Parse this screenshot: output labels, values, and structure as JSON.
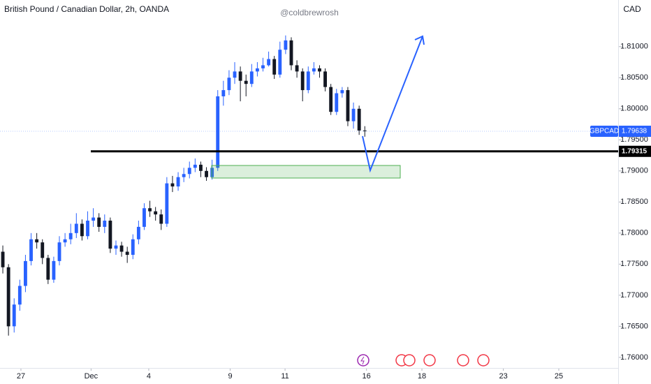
{
  "chart_data": {
    "type": "candlestick",
    "title": "British Pound / Canadian Dollar, 2h, OANDA",
    "watermark": "@coldbrewrosh",
    "currency": "CAD",
    "symbol": "GBPCAD",
    "last_price": 1.79638,
    "level": 1.79315,
    "up_color": "#2962ff",
    "down_color": "#131722",
    "x": [
      0,
      1,
      2,
      3,
      4,
      5,
      6,
      7,
      8,
      9,
      10,
      11,
      12,
      13,
      14,
      15,
      16,
      17,
      18,
      19,
      20,
      21,
      22,
      23,
      24,
      25,
      26,
      27,
      28,
      29,
      30,
      31,
      32,
      33,
      34,
      35,
      36,
      37,
      38,
      39,
      40,
      41,
      42,
      43,
      44,
      45,
      46,
      47,
      48,
      49,
      50,
      51,
      52,
      53,
      54,
      55,
      56,
      57,
      58,
      59,
      60,
      61,
      62,
      63,
      64
    ],
    "open": [
      1.777,
      1.7745,
      1.765,
      1.7685,
      1.7715,
      1.7755,
      1.779,
      1.7785,
      1.776,
      1.7725,
      1.7755,
      1.7785,
      1.779,
      1.78,
      1.7815,
      1.7795,
      1.782,
      1.7825,
      1.781,
      1.782,
      1.7775,
      1.778,
      1.777,
      1.7765,
      1.779,
      1.781,
      1.784,
      1.7835,
      1.783,
      1.7815,
      1.788,
      1.7875,
      1.789,
      1.7895,
      1.7905,
      1.791,
      1.79,
      1.789,
      1.7905,
      1.802,
      1.803,
      1.805,
      1.806,
      1.8045,
      1.804,
      1.806,
      1.8065,
      1.807,
      1.808,
      1.8055,
      1.8095,
      1.811,
      1.807,
      1.806,
      1.803,
      1.806,
      1.8065,
      1.806,
      1.8035,
      1.7995,
      1.8025,
      1.803,
      1.798,
      1.8,
      1.7965
    ],
    "high": [
      1.778,
      1.775,
      1.7695,
      1.7725,
      1.7765,
      1.78,
      1.78,
      1.779,
      1.7765,
      1.7762,
      1.7795,
      1.78,
      1.7815,
      1.7832,
      1.7822,
      1.7835,
      1.784,
      1.7832,
      1.783,
      1.7825,
      1.7788,
      1.7786,
      1.7778,
      1.7798,
      1.782,
      1.7848,
      1.7852,
      1.7842,
      1.7838,
      1.789,
      1.7892,
      1.7898,
      1.7905,
      1.7915,
      1.792,
      1.7915,
      1.7906,
      1.7918,
      1.803,
      1.8045,
      1.8062,
      1.8075,
      1.8068,
      1.8055,
      1.8072,
      1.8075,
      1.8082,
      1.8092,
      1.8085,
      1.8108,
      1.8118,
      1.8115,
      1.8078,
      1.8065,
      1.8068,
      1.8075,
      1.807,
      1.8065,
      1.804,
      1.8032,
      1.8035,
      1.8035,
      1.801,
      1.8005,
      1.7972
    ],
    "low": [
      1.7735,
      1.7635,
      1.764,
      1.7675,
      1.7705,
      1.7748,
      1.7775,
      1.775,
      1.7718,
      1.772,
      1.7748,
      1.7778,
      1.7782,
      1.7792,
      1.7788,
      1.779,
      1.781,
      1.7802,
      1.78,
      1.7768,
      1.7765,
      1.7762,
      1.7752,
      1.7758,
      1.7782,
      1.7805,
      1.7826,
      1.782,
      1.7805,
      1.781,
      1.7866,
      1.7868,
      1.7882,
      1.7888,
      1.7898,
      1.789,
      1.7884,
      1.7886,
      1.79,
      1.8005,
      1.8022,
      1.804,
      1.8012,
      1.802,
      1.8035,
      1.8052,
      1.806,
      1.8068,
      1.8048,
      1.805,
      1.8088,
      1.8062,
      1.805,
      1.8012,
      1.8025,
      1.8055,
      1.805,
      1.8028,
      1.799,
      1.799,
      1.8018,
      1.7972,
      1.7968,
      1.7958,
      1.7955
    ],
    "close": [
      1.7745,
      1.765,
      1.7685,
      1.7715,
      1.7755,
      1.779,
      1.7785,
      1.776,
      1.7725,
      1.7755,
      1.7785,
      1.779,
      1.78,
      1.7815,
      1.7795,
      1.782,
      1.7825,
      1.781,
      1.782,
      1.7775,
      1.778,
      1.777,
      1.7765,
      1.779,
      1.781,
      1.784,
      1.7835,
      1.783,
      1.7815,
      1.788,
      1.7875,
      1.789,
      1.7895,
      1.7905,
      1.791,
      1.79,
      1.789,
      1.7905,
      1.802,
      1.803,
      1.805,
      1.806,
      1.8045,
      1.804,
      1.806,
      1.8065,
      1.807,
      1.808,
      1.8055,
      1.8095,
      1.811,
      1.807,
      1.806,
      1.803,
      1.806,
      1.8065,
      1.806,
      1.8035,
      1.7995,
      1.8025,
      1.803,
      1.798,
      1.8,
      1.7965,
      1.7964
    ],
    "xlim": [
      -0.5,
      108.8
    ],
    "ylim": [
      1.7583,
      1.8175
    ],
    "xticks": [
      {
        "value": 3.2,
        "label": "27"
      },
      {
        "value": 15.6,
        "label": "Dec"
      },
      {
        "value": 25.8,
        "label": "4"
      },
      {
        "value": 40.2,
        "label": "9"
      },
      {
        "value": 49.9,
        "label": "11"
      },
      {
        "value": 64.3,
        "label": "16"
      },
      {
        "value": 74.1,
        "label": "18"
      },
      {
        "value": 88.5,
        "label": "23"
      },
      {
        "value": 98.3,
        "label": "25"
      }
    ],
    "yticks": [
      {
        "value": 1.76,
        "label": "1.76000"
      },
      {
        "value": 1.765,
        "label": "1.76500"
      },
      {
        "value": 1.77,
        "label": "1.77000"
      },
      {
        "value": 1.775,
        "label": "1.77500"
      },
      {
        "value": 1.78,
        "label": "1.78000"
      },
      {
        "value": 1.785,
        "label": "1.78500"
      },
      {
        "value": 1.79,
        "label": "1.79000"
      },
      {
        "value": 1.795,
        "label": "1.79500"
      },
      {
        "value": 1.8,
        "label": "1.80000"
      },
      {
        "value": 1.805,
        "label": "1.80500"
      },
      {
        "value": 1.81,
        "label": "1.81000"
      }
    ]
  }
}
